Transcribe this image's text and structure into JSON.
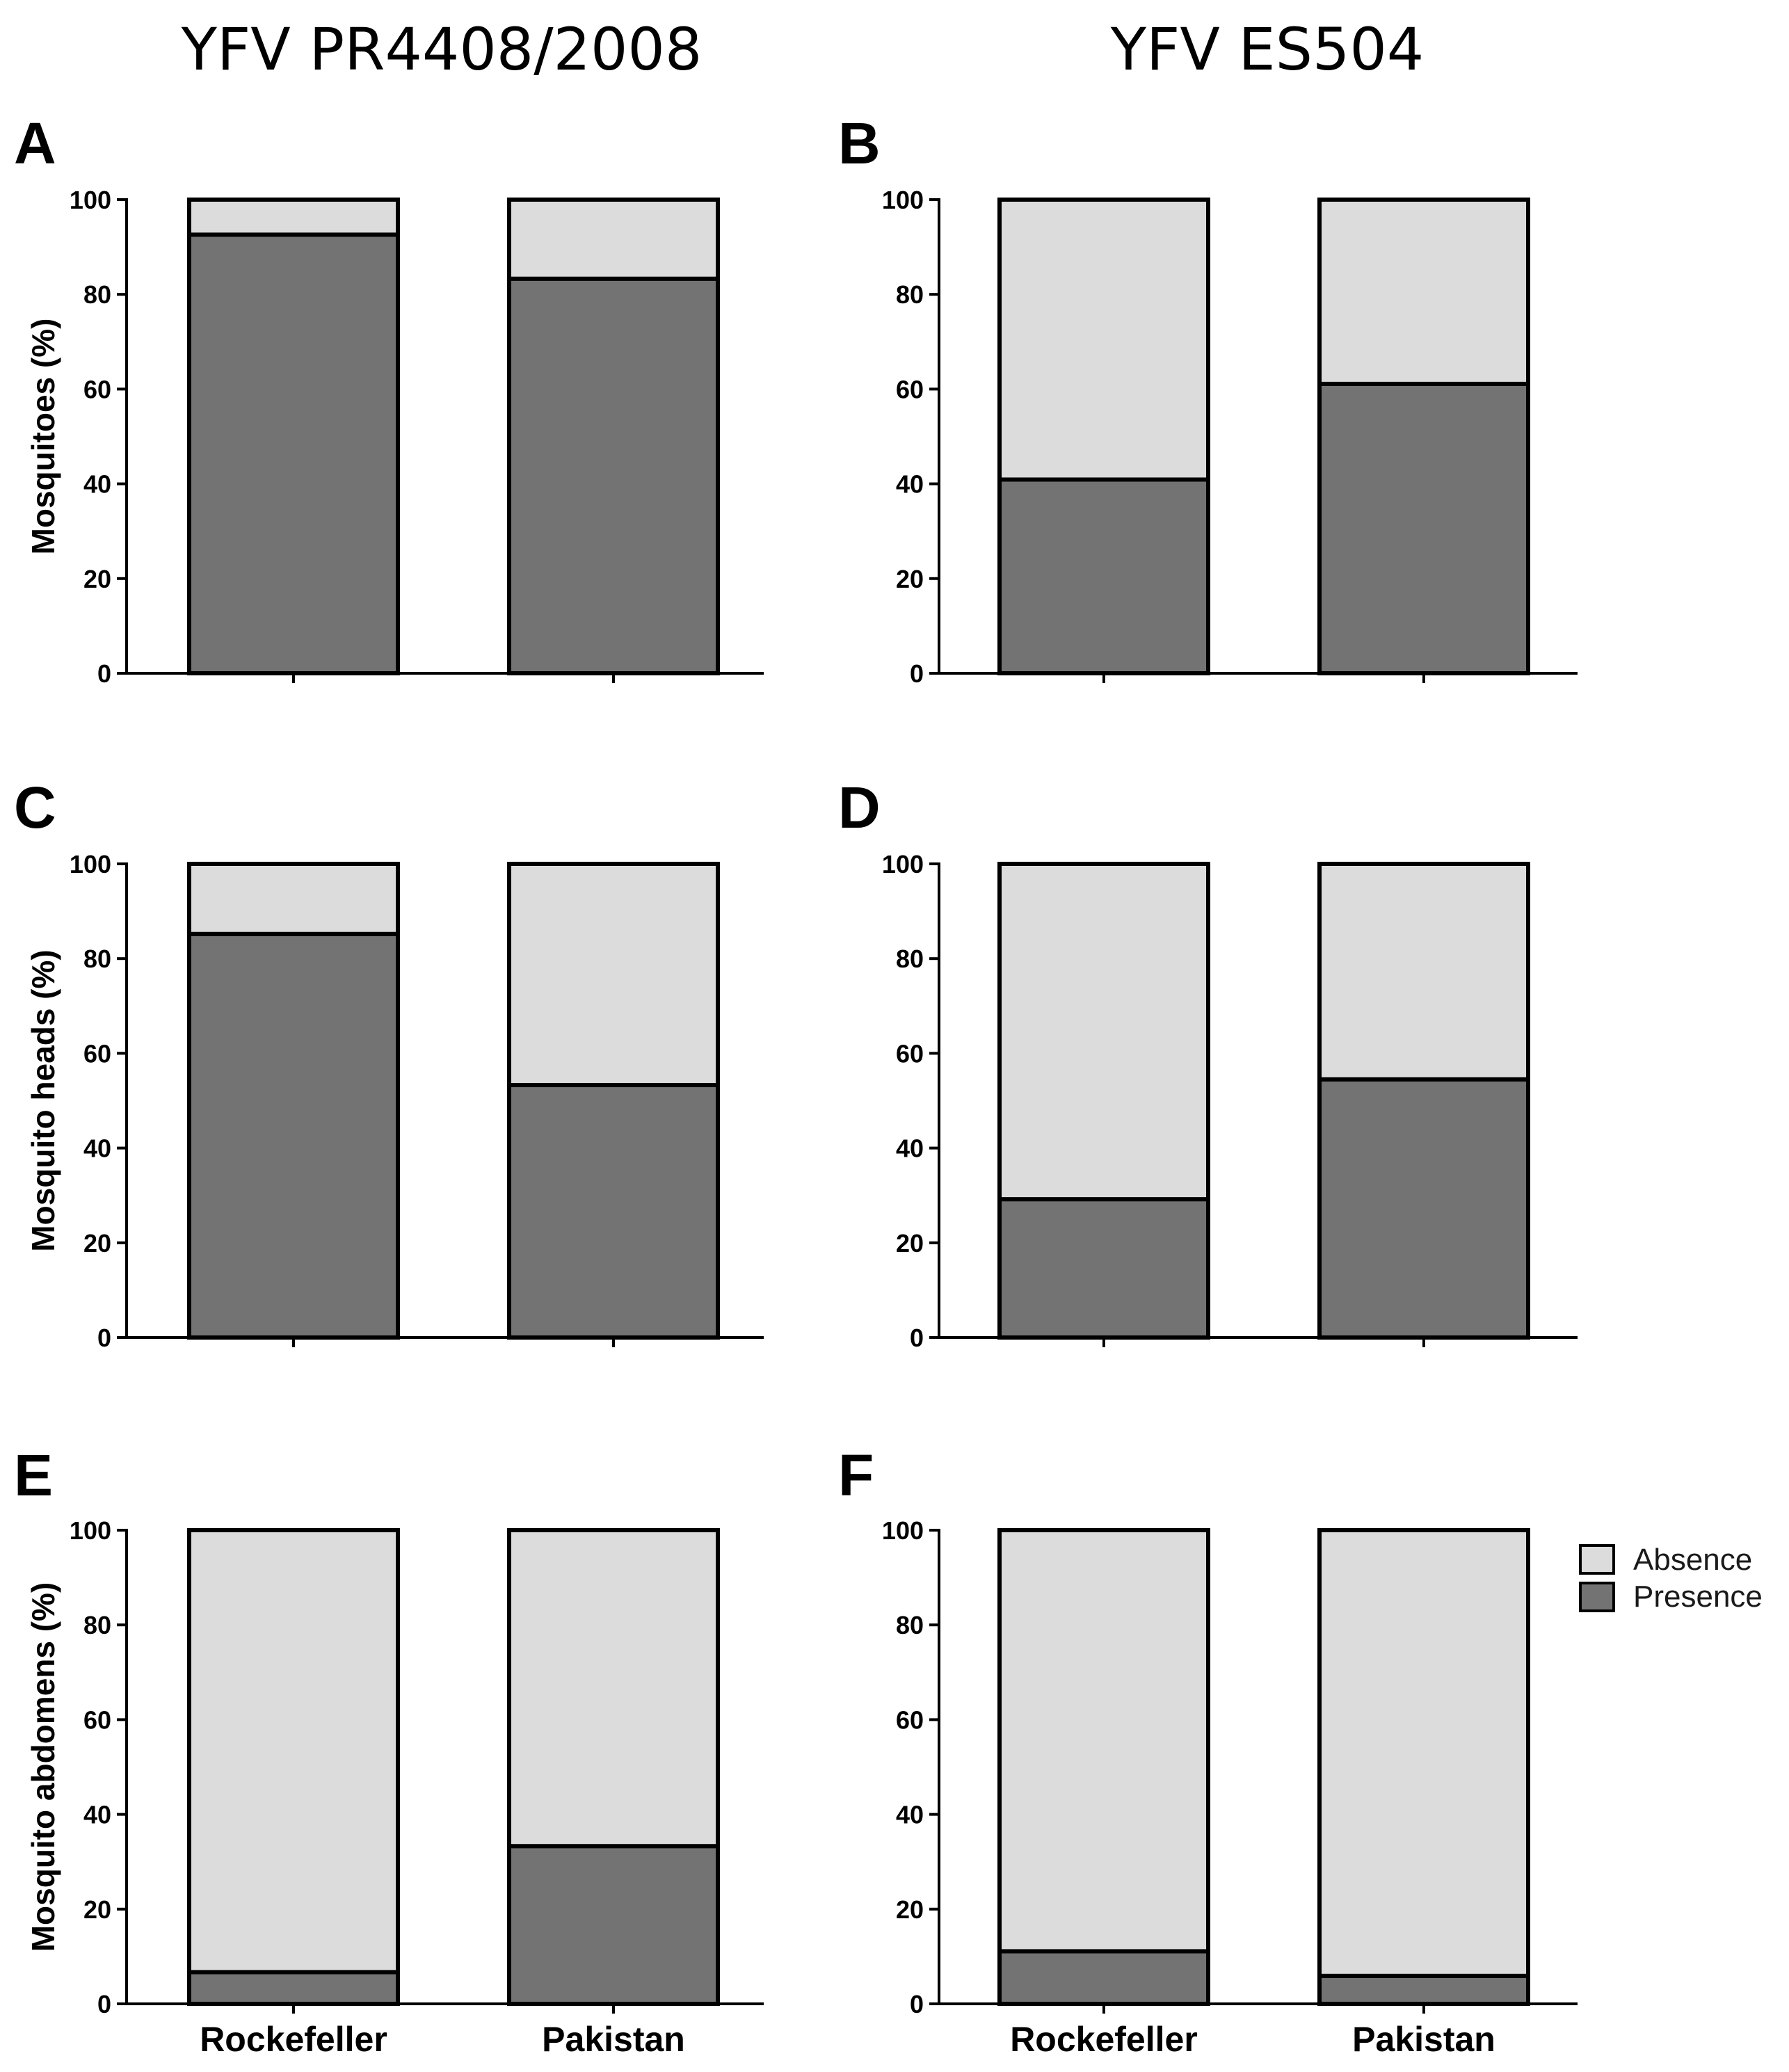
{
  "column_titles": [
    "YFV PR4408/2008",
    "YFV ES504"
  ],
  "legend": {
    "items": [
      {
        "label": "Absence",
        "color": "#dcdcdc"
      },
      {
        "label": "Presence",
        "color": "#737373"
      }
    ]
  },
  "chart_data": [
    {
      "type": "bar",
      "stacked": true,
      "panel": "A",
      "column_title": "YFV PR4408/2008",
      "ylabel": "Mosquitoes (%)",
      "xlabel": "",
      "ylim": [
        0,
        100
      ],
      "yticks": [
        "0",
        "20",
        "40",
        "60",
        "80",
        "100"
      ],
      "categories": [
        "Rockefeller",
        "Pakistan"
      ],
      "show_category_labels": false,
      "series": [
        {
          "name": "Presence",
          "values": [
            92.6,
            83.3
          ]
        },
        {
          "name": "Absence",
          "values": [
            7.4,
            16.7
          ]
        }
      ]
    },
    {
      "type": "bar",
      "stacked": true,
      "panel": "B",
      "column_title": "YFV ES504",
      "ylabel": "",
      "xlabel": "",
      "ylim": [
        0,
        100
      ],
      "yticks": [
        "0",
        "20",
        "40",
        "60",
        "80",
        "100"
      ],
      "categories": [
        "Rockefeller",
        "Pakistan"
      ],
      "show_category_labels": false,
      "series": [
        {
          "name": "Presence",
          "values": [
            40.9,
            61.1
          ]
        },
        {
          "name": "Absence",
          "values": [
            59.1,
            38.9
          ]
        }
      ]
    },
    {
      "type": "bar",
      "stacked": true,
      "panel": "C",
      "ylabel": "Mosquito heads (%)",
      "xlabel": "",
      "ylim": [
        0,
        100
      ],
      "yticks": [
        "0",
        "20",
        "40",
        "60",
        "80",
        "100"
      ],
      "categories": [
        "Rockefeller",
        "Pakistan"
      ],
      "show_category_labels": false,
      "series": [
        {
          "name": "Presence",
          "values": [
            85.2,
            53.3
          ]
        },
        {
          "name": "Absence",
          "values": [
            14.8,
            46.7
          ]
        }
      ]
    },
    {
      "type": "bar",
      "stacked": true,
      "panel": "D",
      "ylabel": "",
      "xlabel": "",
      "ylim": [
        0,
        100
      ],
      "yticks": [
        "0",
        "20",
        "40",
        "60",
        "80",
        "100"
      ],
      "categories": [
        "Rockefeller",
        "Pakistan"
      ],
      "show_category_labels": false,
      "series": [
        {
          "name": "Presence",
          "values": [
            29.2,
            54.5
          ]
        },
        {
          "name": "Absence",
          "values": [
            70.8,
            45.5
          ]
        }
      ]
    },
    {
      "type": "bar",
      "stacked": true,
      "panel": "E",
      "ylabel": "Mosquito abdomens (%)",
      "xlabel": "",
      "ylim": [
        0,
        100
      ],
      "yticks": [
        "0",
        "20",
        "40",
        "60",
        "80",
        "100"
      ],
      "categories": [
        "Rockefeller",
        "Pakistan"
      ],
      "show_category_labels": true,
      "series": [
        {
          "name": "Presence",
          "values": [
            6.7,
            33.3
          ]
        },
        {
          "name": "Absence",
          "values": [
            93.3,
            66.7
          ]
        }
      ]
    },
    {
      "type": "bar",
      "stacked": true,
      "panel": "F",
      "ylabel": "",
      "xlabel": "",
      "ylim": [
        0,
        100
      ],
      "yticks": [
        "0",
        "20",
        "40",
        "60",
        "80",
        "100"
      ],
      "categories": [
        "Rockefeller",
        "Pakistan"
      ],
      "show_category_labels": true,
      "series": [
        {
          "name": "Presence",
          "values": [
            11.1,
            5.9
          ]
        },
        {
          "name": "Absence",
          "values": [
            88.9,
            94.1
          ]
        }
      ]
    }
  ]
}
